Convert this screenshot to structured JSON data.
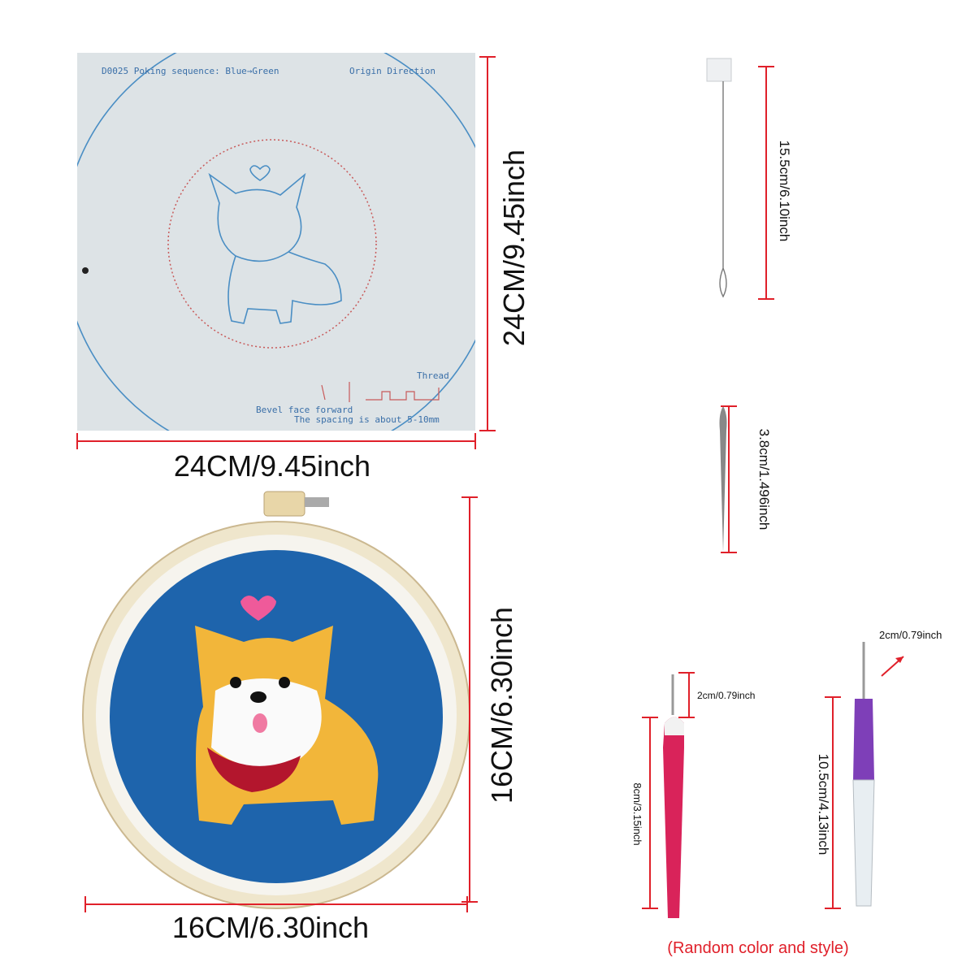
{
  "pattern": {
    "header": "D0025 Poking sequence: Blue→Green",
    "direction": "Origin Direction",
    "thread": "Thread",
    "bevel": "Bevel face forward",
    "spacing": "The spacing is about 5-10mm",
    "height": "24CM/9.45inch",
    "width": "24CM/9.45inch"
  },
  "hoop": {
    "height": "16CM/6.30inch",
    "width": "16CM/6.30inch"
  },
  "threader": {
    "length": "15.5cm/6.10inch"
  },
  "needle": {
    "length": "3.8cm/1.496inch"
  },
  "punch_pen_1": {
    "tip": "2cm/0.79inch",
    "length": "8cm/3.15inch"
  },
  "punch_pen_2": {
    "tip": "2cm/0.79inch",
    "length": "10.5cm/4.13inch"
  },
  "note": "(Random color and style)"
}
